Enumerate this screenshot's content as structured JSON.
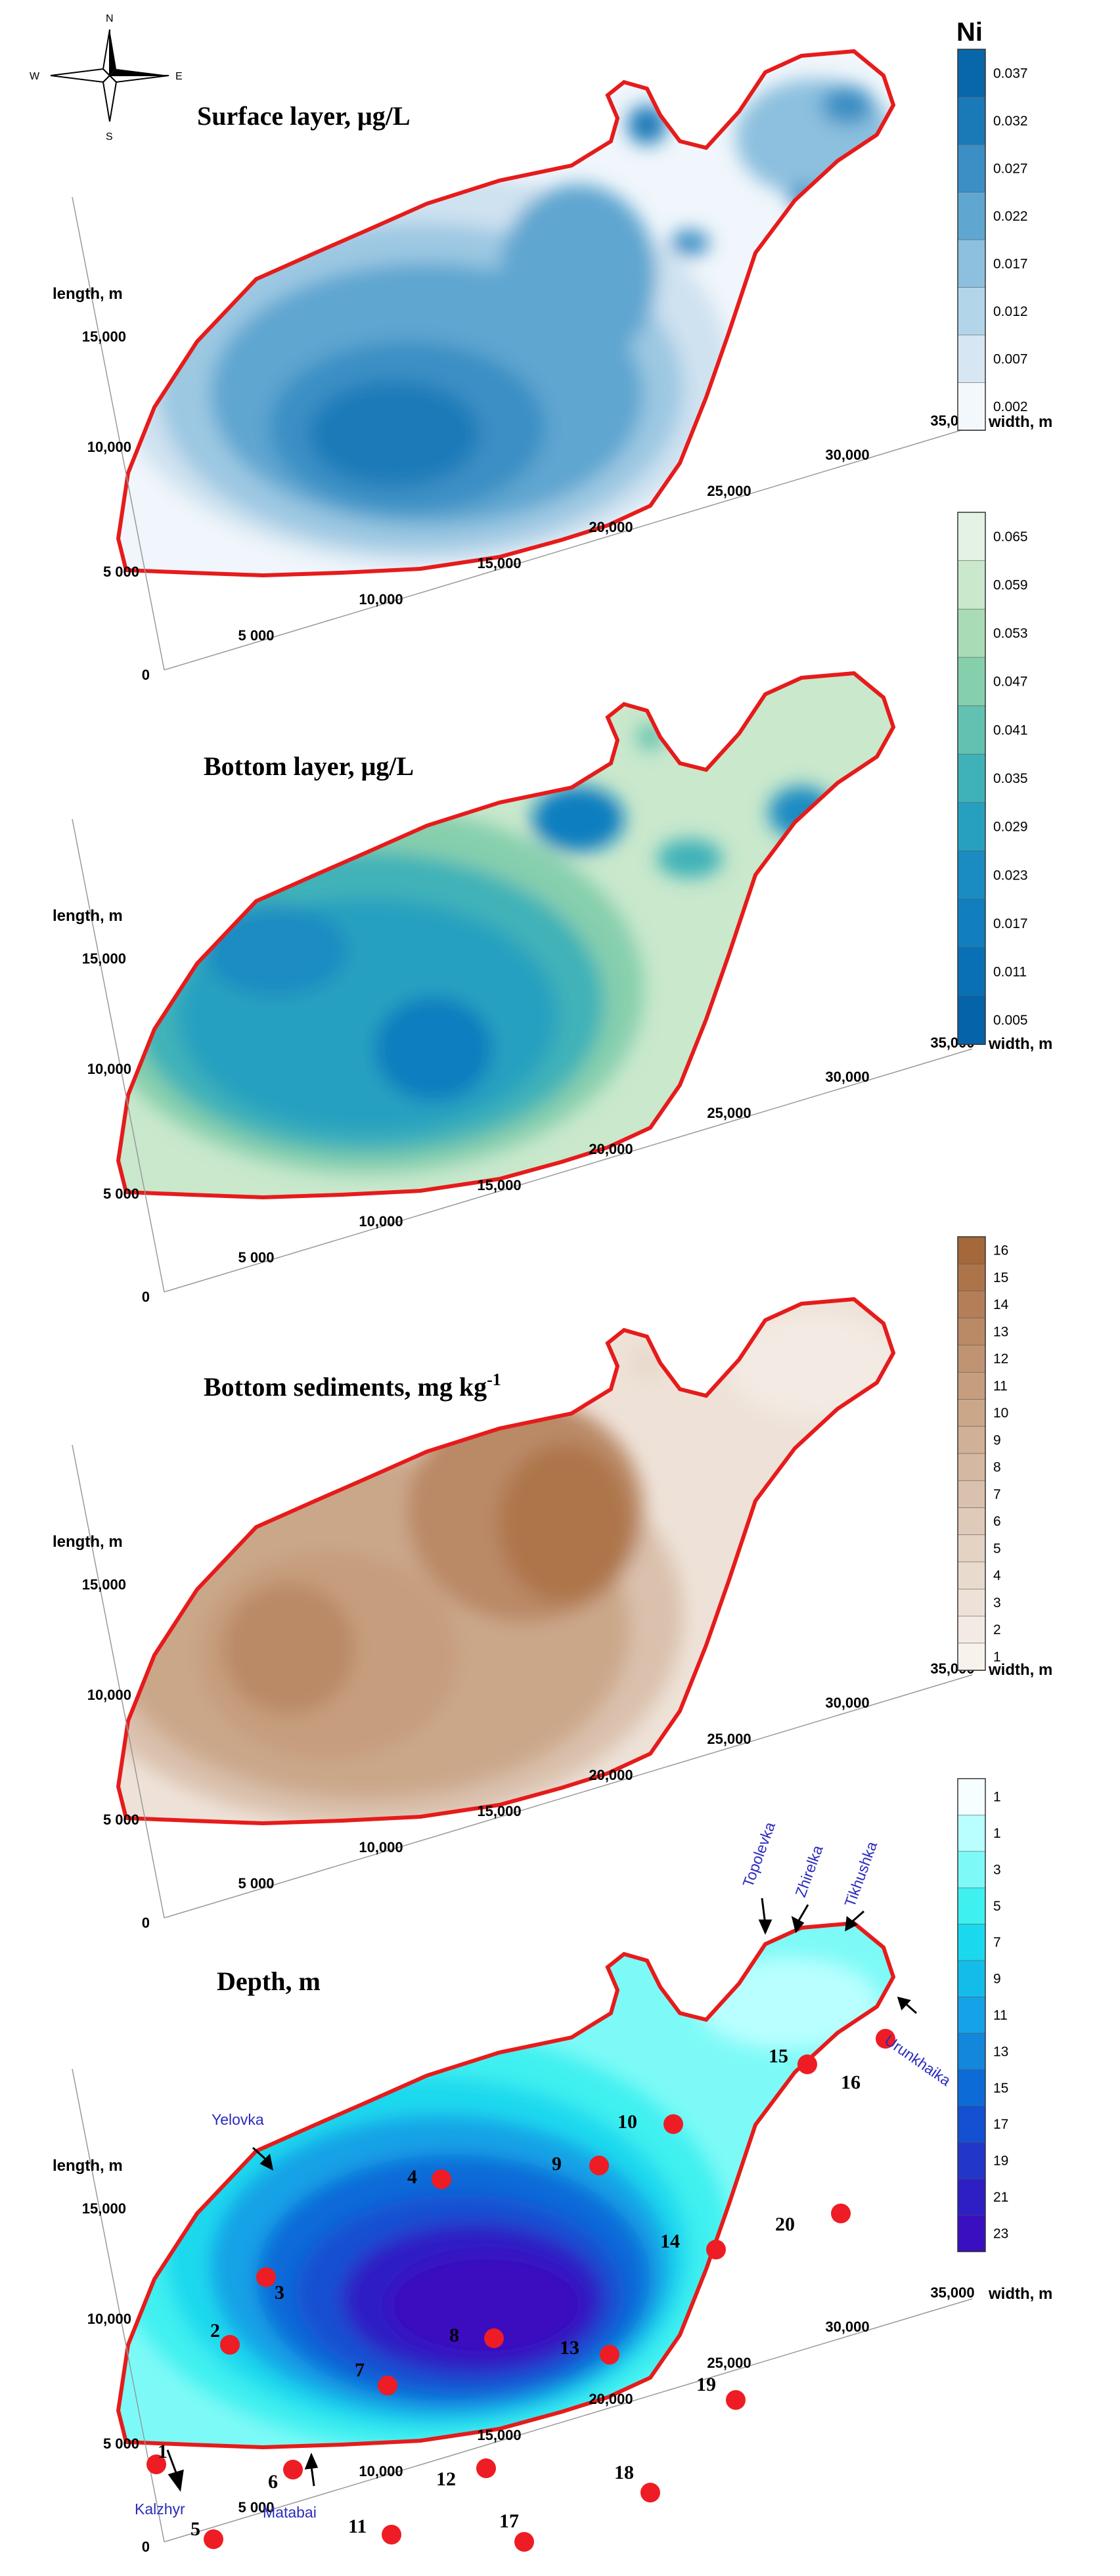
{
  "compass": {
    "n": "N",
    "s": "S",
    "e": "E",
    "w": "W"
  },
  "legend_title": "Ni",
  "shared_axes": {
    "x_label": "width, m",
    "y_label": "length, m",
    "x_ticks": [
      "5 000",
      "10,000",
      "15,000",
      "20,000",
      "25,000",
      "30,000",
      "35,000"
    ],
    "y_ticks": [
      "0",
      "5 000",
      "10,000",
      "15,000"
    ]
  },
  "chart_data": [
    {
      "type": "heatmap",
      "title": "Surface layer, μg/L",
      "xlabel": "width, m",
      "ylabel": "length, m",
      "colorbar_ticks": [
        "0.037",
        "0.032",
        "0.027",
        "0.022",
        "0.017",
        "0.012",
        "0.007",
        "0.002"
      ],
      "colorbar_colors": [
        "#0867a8",
        "#1a7ab8",
        "#3b8fc4",
        "#5fa6d0",
        "#8cc0de",
        "#b3d5ea",
        "#d6e7f3",
        "#f3f8fc"
      ],
      "colors": {
        "low": "#f3f8fc",
        "high": "#0867a8"
      }
    },
    {
      "type": "heatmap",
      "title": "Bottom layer, μg/L",
      "xlabel": "width, m",
      "ylabel": "length, m",
      "colorbar_ticks": [
        "0.065",
        "0.059",
        "0.053",
        "0.047",
        "0.041",
        "0.035",
        "0.029",
        "0.023",
        "0.017",
        "0.011",
        "0.005"
      ],
      "colorbar_colors": [
        "#e3f2e3",
        "#c9e8cc",
        "#a9dcb6",
        "#86cfad",
        "#62c1b0",
        "#3fb2b8",
        "#27a0c0",
        "#1a8cc2",
        "#117ebf",
        "#0a70b5",
        "#0563a9"
      ],
      "colors": {
        "low": "#0563a9",
        "high": "#e3f2e3"
      }
    },
    {
      "type": "heatmap",
      "title": "Bottom sediments, mg kg",
      "title_superscript": "-1",
      "xlabel": "width, m",
      "ylabel": "length, m",
      "colorbar_ticks": [
        "16",
        "15",
        "14",
        "13",
        "12",
        "11",
        "10",
        "9",
        "8",
        "7",
        "6",
        "5",
        "4",
        "3",
        "2",
        "1"
      ],
      "colorbar_colors": [
        "#a5683a",
        "#ad744a",
        "#b47f58",
        "#ba8966",
        "#c09472",
        "#c69e7e",
        "#cba78a",
        "#d0b096",
        "#d5b8a2",
        "#dac1ad",
        "#dfc9b8",
        "#e4d2c3",
        "#e9dace",
        "#eee2d8",
        "#f3eae3",
        "#f8f2ed"
      ],
      "colors": {
        "low": "#f8f2ed",
        "high": "#a5683a"
      }
    },
    {
      "type": "heatmap",
      "title": "Depth, m",
      "xlabel": "width, m",
      "ylabel": "length, m",
      "colorbar_ticks": [
        "1",
        "1",
        "3",
        "5",
        "7",
        "9",
        "11",
        "13",
        "15",
        "17",
        "19",
        "21",
        "23"
      ],
      "colorbar_colors": [
        "#f5ffff",
        "#b9ffff",
        "#7dfaf7",
        "#3ff0f0",
        "#1ad9ee",
        "#14bce9",
        "#16a2e6",
        "#1287dc",
        "#0d6bd8",
        "#1350d2",
        "#2237c9",
        "#2d1fc4",
        "#3a0fbf"
      ],
      "colors": {
        "low": "#f5ffff",
        "high": "#3a0fbf"
      },
      "stations": [
        "1",
        "2",
        "3",
        "4",
        "5",
        "6",
        "7",
        "8",
        "9",
        "10",
        "11",
        "12",
        "13",
        "14",
        "15",
        "16",
        "17",
        "18",
        "19",
        "20"
      ],
      "rivers": [
        "Topolevka",
        "Zhirelka",
        "Tikhushka",
        "Yelovka",
        "Urunkhaika",
        "Kalzhyr",
        "Matabai"
      ]
    }
  ]
}
